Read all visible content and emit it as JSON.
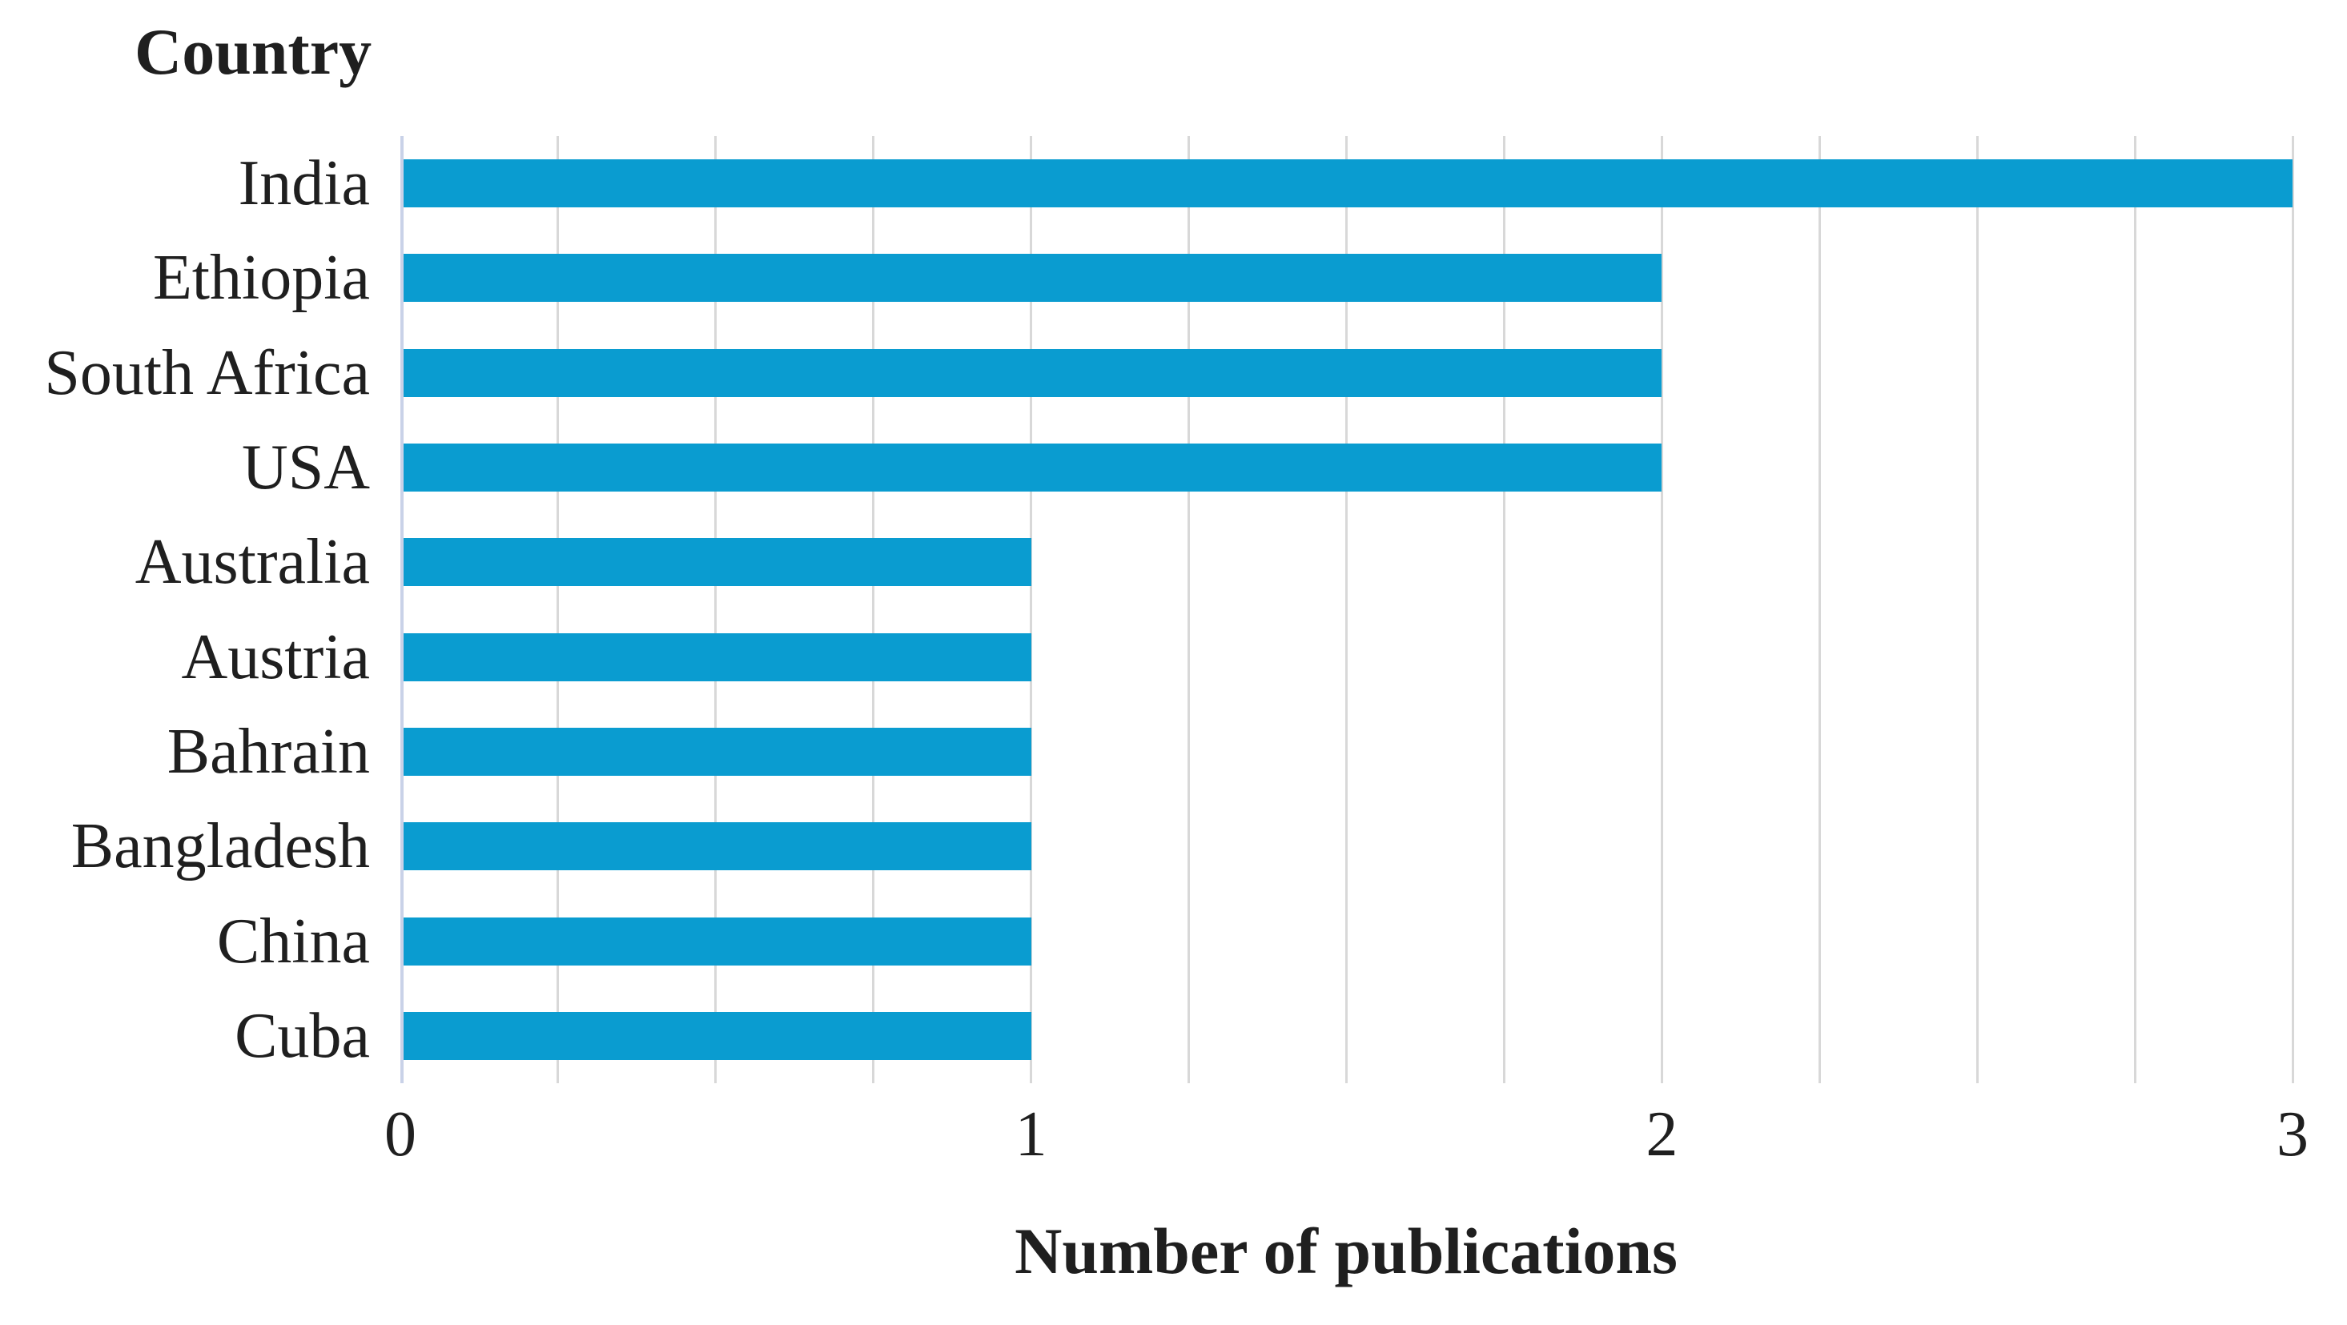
{
  "chart_data": {
    "type": "bar",
    "orientation": "horizontal",
    "title": "Country",
    "xlabel": "Number of publications",
    "categories": [
      "India",
      "Ethiopia",
      "South Africa",
      "USA",
      "Australia",
      "Austria",
      "Bahrain",
      "Bangladesh",
      "China",
      "Cuba"
    ],
    "values": [
      3,
      2,
      2,
      2,
      1,
      1,
      1,
      1,
      1,
      1
    ],
    "xlim": [
      0,
      3
    ],
    "xticks": [
      0,
      1,
      2,
      3
    ],
    "minor_grid_step": 0.25,
    "grid": "vertical-minor",
    "legend": "none",
    "colors": {
      "bar": "#0A9CD0",
      "gridline": "#D8D8D8",
      "zero_axis": "#C9D2E8",
      "text": "#1F1F1F"
    }
  }
}
